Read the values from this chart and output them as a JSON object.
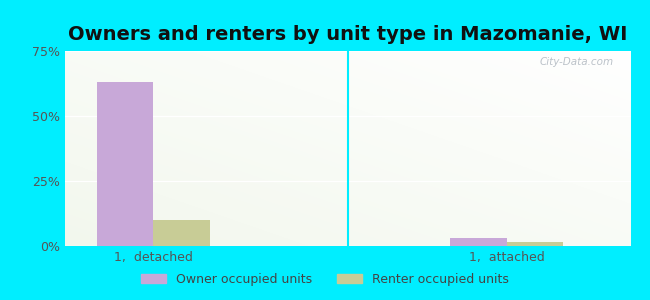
{
  "title": "Owners and renters by unit type in Mazomanie, WI",
  "categories": [
    "1,  detached",
    "1,  attached"
  ],
  "owner_values": [
    63.0,
    3.0
  ],
  "renter_values": [
    10.0,
    1.5
  ],
  "owner_color": "#c8a8d8",
  "renter_color": "#c8cc96",
  "bg_color": "#00eeff",
  "ylim": [
    0,
    75
  ],
  "yticks": [
    0,
    25,
    50,
    75
  ],
  "ytick_labels": [
    "0%",
    "25%",
    "50%",
    "75%"
  ],
  "legend_owner": "Owner occupied units",
  "legend_renter": "Renter occupied units",
  "title_fontsize": 14,
  "watermark": "City-Data.com",
  "bar_width": 0.32,
  "group_positions": [
    0.5,
    2.5
  ],
  "xlim": [
    0.0,
    3.2
  ]
}
